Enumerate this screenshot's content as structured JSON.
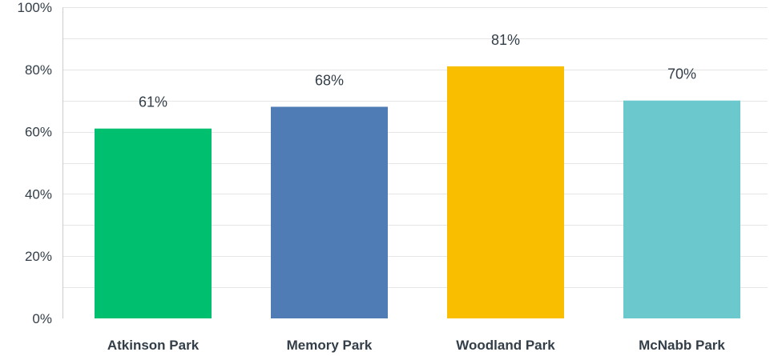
{
  "chart_data": {
    "type": "bar",
    "categories": [
      "Atkinson Park",
      "Memory Park",
      "Woodland Park",
      "McNabb Park"
    ],
    "values": [
      61,
      68,
      81,
      70
    ],
    "data_labels": [
      "61%",
      "68%",
      "81%",
      "70%"
    ],
    "colors": [
      "#00bf6f",
      "#507cb6",
      "#f9be00",
      "#6bc8cd"
    ],
    "ylim": [
      0,
      100
    ],
    "yticks": [
      0,
      20,
      40,
      60,
      80,
      100
    ],
    "ytick_labels": [
      "0%",
      "20%",
      "40%",
      "60%",
      "80%",
      "100%"
    ],
    "grid": true,
    "legend": "none"
  }
}
